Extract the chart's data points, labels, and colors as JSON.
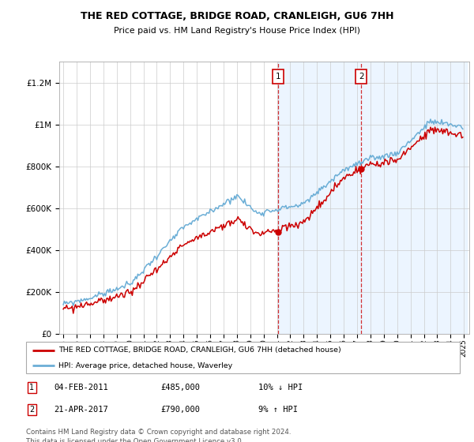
{
  "title1": "THE RED COTTAGE, BRIDGE ROAD, CRANLEIGH, GU6 7HH",
  "title2": "Price paid vs. HM Land Registry's House Price Index (HPI)",
  "legend_red": "THE RED COTTAGE, BRIDGE ROAD, CRANLEIGH, GU6 7HH (detached house)",
  "legend_blue": "HPI: Average price, detached house, Waverley",
  "annotation1_date": "04-FEB-2011",
  "annotation1_price": "£485,000",
  "annotation1_hpi": "10% ↓ HPI",
  "annotation2_date": "21-APR-2017",
  "annotation2_price": "£790,000",
  "annotation2_hpi": "9% ↑ HPI",
  "footer": "Contains HM Land Registry data © Crown copyright and database right 2024.\nThis data is licensed under the Open Government Licence v3.0.",
  "ylim": [
    0,
    1300000
  ],
  "yticks": [
    0,
    200000,
    400000,
    600000,
    800000,
    1000000,
    1200000
  ],
  "sale1_x": 2011.08,
  "sale1_y": 485000,
  "sale2_x": 2017.3,
  "sale2_y": 790000,
  "shaded_start": 2011.08,
  "shaded_end": 2025.2,
  "xmin": 1994.7,
  "xmax": 2025.4,
  "red_color": "#cc0000",
  "blue_color": "#6baed6",
  "shade_color": "#ddeeff"
}
